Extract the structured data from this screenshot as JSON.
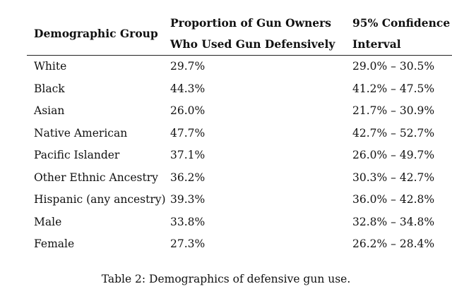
{
  "table": {
    "headers": {
      "group": "Demographic Group",
      "proportion_line1": "Proportion of Gun Owners",
      "proportion_line2": "Who Used Gun Defensively",
      "ci_line1": "95% Confidence",
      "ci_line2": "Interval"
    },
    "rows": [
      {
        "group": "White",
        "proportion": "29.7%",
        "ci": "29.0% – 30.5%"
      },
      {
        "group": "Black",
        "proportion": "44.3%",
        "ci": "41.2% – 47.5%"
      },
      {
        "group": "Asian",
        "proportion": "26.0%",
        "ci": "21.7% – 30.9%"
      },
      {
        "group": "Native American",
        "proportion": "47.7%",
        "ci": "42.7% – 52.7%"
      },
      {
        "group": "Pacific Islander",
        "proportion": "37.1%",
        "ci": "26.0% – 49.7%"
      },
      {
        "group": "Other Ethnic Ancestry",
        "proportion": "36.2%",
        "ci": "30.3% – 42.7%"
      },
      {
        "group": "Hispanic (any ancestry)",
        "proportion": "39.3%",
        "ci": "36.0% – 42.8%"
      },
      {
        "group": "Male",
        "proportion": "33.8%",
        "ci": "32.8% – 34.8%"
      },
      {
        "group": "Female",
        "proportion": "27.3%",
        "ci": "26.2% – 28.4%"
      }
    ]
  },
  "caption": "Table 2: Demographics of defensive gun use."
}
